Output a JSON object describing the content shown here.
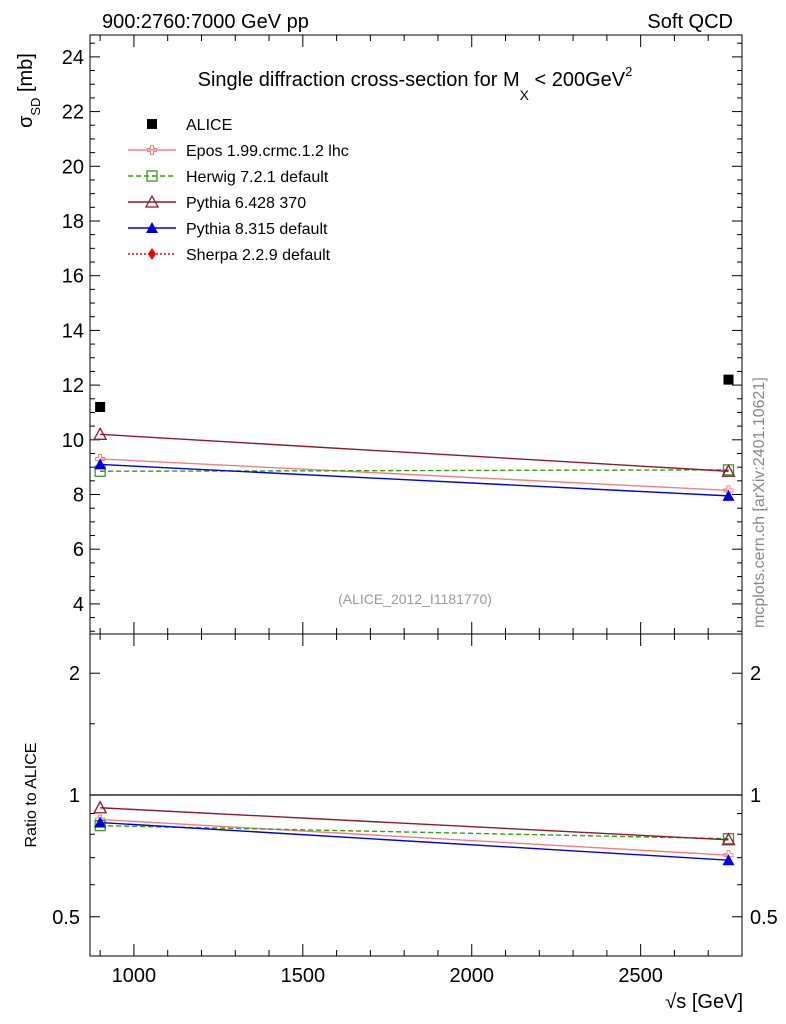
{
  "header": {
    "left": "900:2760:7000 GeV pp",
    "right": "Soft QCD"
  },
  "watermark": "mcplots.cern.ch [arXiv:2401.10621]",
  "analysis_label": "(ALICE_2012_I1181770)",
  "chart_data": [
    {
      "type": "scatter",
      "title": {
        "prefix": "Single diffraction cross-section for M",
        "subscript": "X",
        "middle": " < 200GeV",
        "superscript": "2"
      },
      "ylabel": {
        "main": "σ",
        "subscript": "SD",
        "suffix": " [mb]"
      },
      "xlim": [
        870,
        2800
      ],
      "ylim": [
        2.9,
        24.8
      ],
      "yticks": [
        "4",
        "6",
        "8",
        "10",
        "12",
        "14",
        "16",
        "18",
        "20",
        "22",
        "24"
      ],
      "legend_position": "top-left",
      "series": [
        {
          "name": "ALICE",
          "color": "#000000",
          "marker": "square-filled",
          "line": "none",
          "x": [
            900,
            2760
          ],
          "y": [
            11.2,
            12.2
          ]
        },
        {
          "name": "Epos 1.99.crmc.1.2 lhc",
          "color": "#f08080",
          "marker": "cross-open",
          "line": "solid",
          "x": [
            900,
            2760
          ],
          "y": [
            9.3,
            8.15
          ]
        },
        {
          "name": "Herwig 7.2.1 default",
          "color": "#3a9a1a",
          "marker": "square-open",
          "line": "dashed",
          "x": [
            900,
            2760
          ],
          "y": [
            8.85,
            8.9
          ]
        },
        {
          "name": "Pythia 6.428 370",
          "color": "#8b1a2a",
          "marker": "triangle-open",
          "line": "solid",
          "x": [
            900,
            2760
          ],
          "y": [
            10.2,
            8.85
          ]
        },
        {
          "name": "Pythia 8.315 default",
          "color": "#0000dd",
          "marker": "triangle-filled",
          "line": "solid",
          "x": [
            900,
            2760
          ],
          "y": [
            9.1,
            7.95
          ]
        },
        {
          "name": "Sherpa 2.2.9 default",
          "color": "#ee0000",
          "marker": "diamond-filled",
          "line": "dotted",
          "x": [],
          "y": []
        }
      ]
    },
    {
      "type": "line",
      "ylabel": "Ratio to ALICE",
      "xlabel": "√s [GeV]",
      "xlim": [
        870,
        2800
      ],
      "ylim": [
        0.4,
        2.5
      ],
      "log_y": true,
      "xticks": [
        "1000",
        "1500",
        "2000",
        "2500"
      ],
      "yticks": [
        "0.5",
        "1",
        "2"
      ],
      "reference_line": 1,
      "series": [
        {
          "name": "Epos 1.99.crmc.1.2 lhc",
          "color": "#f08080",
          "marker": "cross-open",
          "line": "solid",
          "x": [
            900,
            2760
          ],
          "y": [
            0.87,
            0.71
          ]
        },
        {
          "name": "Herwig 7.2.1 default",
          "color": "#3a9a1a",
          "marker": "square-open",
          "line": "dashed",
          "x": [
            900,
            2760
          ],
          "y": [
            0.84,
            0.78
          ]
        },
        {
          "name": "Pythia 6.428 370",
          "color": "#8b1a2a",
          "marker": "triangle-open",
          "line": "solid",
          "x": [
            900,
            2760
          ],
          "y": [
            0.93,
            0.775
          ]
        },
        {
          "name": "Pythia 8.315 default",
          "color": "#0000dd",
          "marker": "triangle-filled",
          "line": "solid",
          "x": [
            900,
            2760
          ],
          "y": [
            0.855,
            0.69
          ]
        }
      ]
    }
  ]
}
